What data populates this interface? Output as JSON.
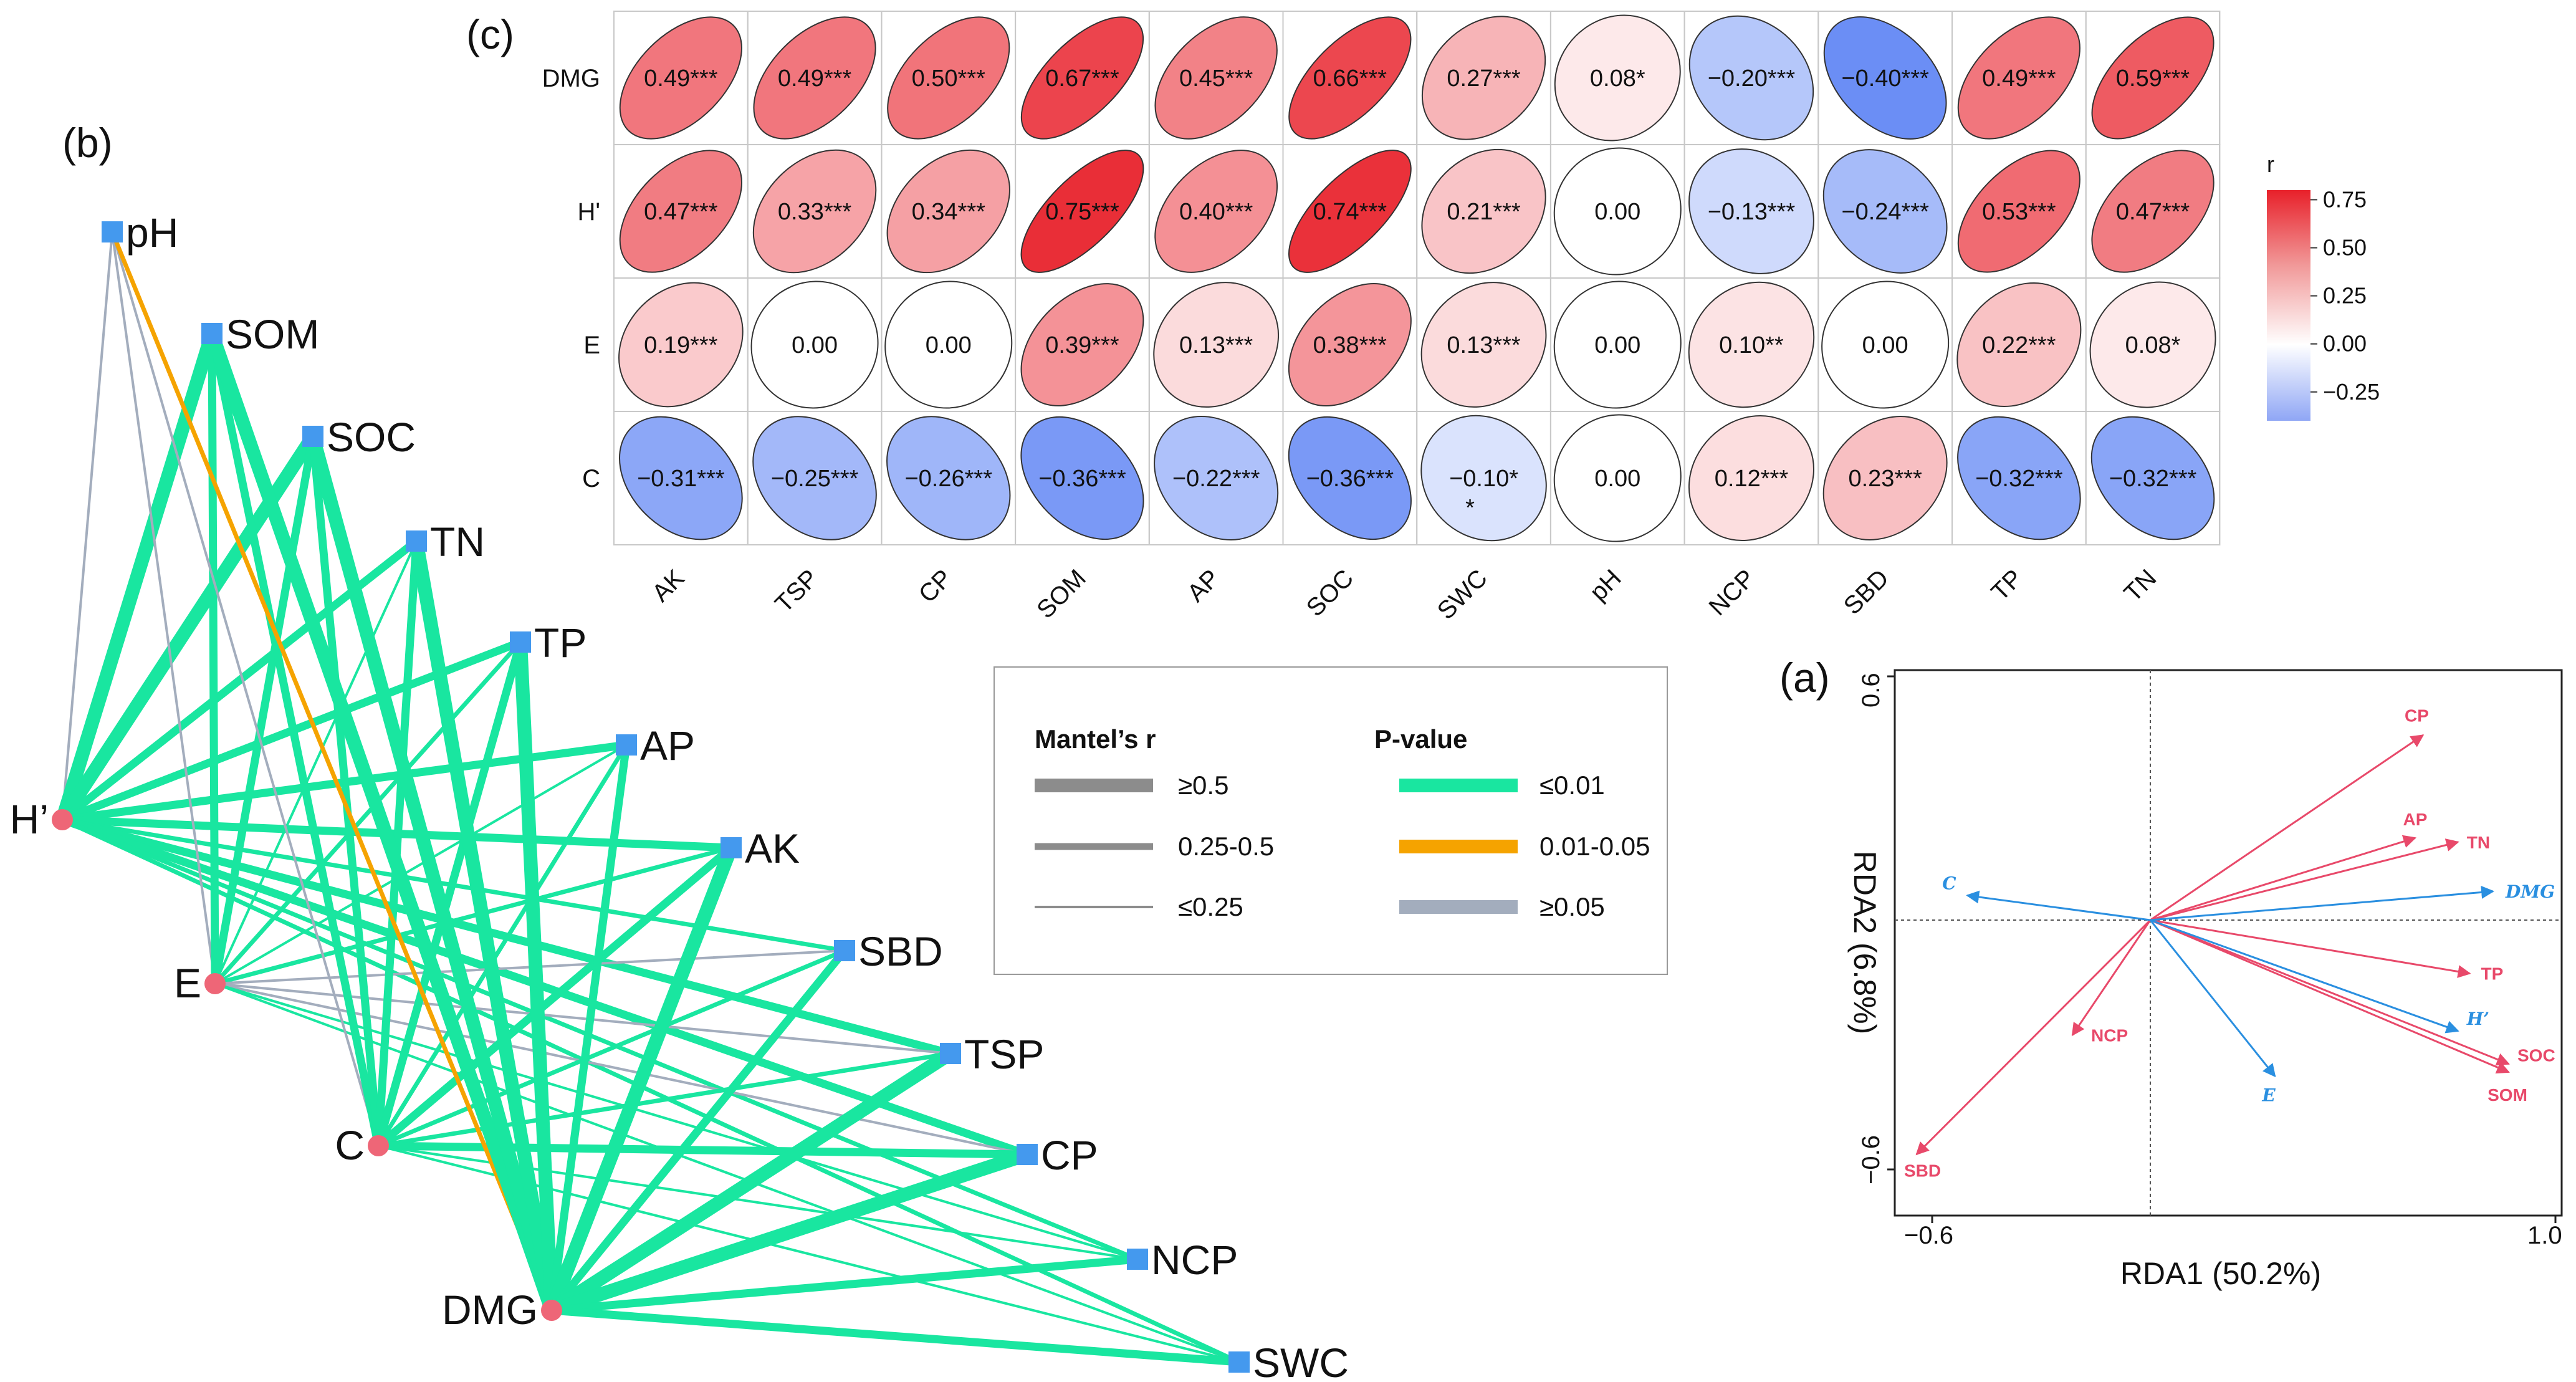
{
  "panels": {
    "a": "(a)",
    "b": "(b)",
    "c": "(c)"
  },
  "colors": {
    "significant": "#19e6a0",
    "marginal": "#f5a300",
    "ns": "#a3adbd",
    "response_node": "#ee6677",
    "env_node": "#4499ee",
    "env_arrow": "#e8496a",
    "resp_arrow": "#2a8fe0",
    "neg": "#6b8ef5",
    "pos": "#e8202a"
  },
  "chart_data": [
    {
      "type": "heatmap",
      "panel": "c",
      "rows": [
        "DMG",
        "H'",
        "E",
        "C"
      ],
      "columns": [
        "AK",
        "TSP",
        "CP",
        "SOM",
        "AP",
        "SOC",
        "SWC",
        "pH",
        "NCP",
        "SBD",
        "TP",
        "TN"
      ],
      "values": [
        [
          0.49,
          0.49,
          0.5,
          0.67,
          0.45,
          0.66,
          0.27,
          0.08,
          -0.2,
          -0.4,
          0.49,
          0.59
        ],
        [
          0.47,
          0.33,
          0.34,
          0.75,
          0.4,
          0.74,
          0.21,
          0.0,
          -0.13,
          -0.24,
          0.53,
          0.47
        ],
        [
          0.19,
          0.0,
          0.0,
          0.39,
          0.13,
          0.38,
          0.13,
          0.0,
          0.1,
          0.0,
          0.22,
          0.08
        ],
        [
          -0.31,
          -0.25,
          -0.26,
          -0.36,
          -0.22,
          -0.36,
          -0.1,
          0.0,
          0.12,
          0.23,
          -0.32,
          -0.32
        ]
      ],
      "labels": [
        [
          "0.49***",
          "0.49***",
          "0.50***",
          "0.67***",
          "0.45***",
          "0.66***",
          "0.27***",
          "0.08*",
          "−0.20***",
          "−0.40***",
          "0.49***",
          "0.59***"
        ],
        [
          "0.47***",
          "0.33***",
          "0.34***",
          "0.75***",
          "0.40***",
          "0.74***",
          "0.21***",
          "0.00",
          "−0.13***",
          "−0.24***",
          "0.53***",
          "0.47***"
        ],
        [
          "0.19***",
          "0.00",
          "0.00",
          "0.39***",
          "0.13***",
          "0.38***",
          "0.13***",
          "0.00",
          "0.10**",
          "0.00",
          "0.22***",
          "0.08*"
        ],
        [
          "−0.31***",
          "−0.25***",
          "−0.26***",
          "−0.36***",
          "−0.22***",
          "−0.36***",
          "−0.10*",
          "0.00",
          "0.12***",
          "0.23***",
          "−0.32***",
          "−0.32***"
        ]
      ],
      "extra_marks": {
        "SWC_C": "*"
      },
      "colorbar": {
        "title": "r",
        "ticks": [
          "0.75",
          "0.50",
          "0.25",
          "0.00",
          "−0.25"
        ],
        "range": [
          -0.4,
          0.8
        ]
      }
    },
    {
      "type": "network",
      "panel": "b",
      "response_nodes": [
        "H’",
        "E",
        "C",
        "DMG"
      ],
      "env_nodes": [
        "pH",
        "SOM",
        "SOC",
        "TN",
        "TP",
        "AP",
        "AK",
        "SBD",
        "TSP",
        "CP",
        "NCP",
        "SWC"
      ],
      "edges": [
        {
          "from": "H’",
          "to": "pH",
          "r": 0.1,
          "p": "ns"
        },
        {
          "from": "H’",
          "to": "SOM",
          "r": 0.6,
          "p": "sig"
        },
        {
          "from": "H’",
          "to": "SOC",
          "r": 0.6,
          "p": "sig"
        },
        {
          "from": "H’",
          "to": "TN",
          "r": 0.4,
          "p": "sig"
        },
        {
          "from": "H’",
          "to": "TP",
          "r": 0.4,
          "p": "sig"
        },
        {
          "from": "H’",
          "to": "AP",
          "r": 0.3,
          "p": "sig"
        },
        {
          "from": "H’",
          "to": "AK",
          "r": 0.4,
          "p": "sig"
        },
        {
          "from": "H’",
          "to": "SBD",
          "r": 0.2,
          "p": "sig"
        },
        {
          "from": "H’",
          "to": "TSP",
          "r": 0.3,
          "p": "sig"
        },
        {
          "from": "H’",
          "to": "CP",
          "r": 0.3,
          "p": "sig"
        },
        {
          "from": "H’",
          "to": "NCP",
          "r": 0.2,
          "p": "sig"
        },
        {
          "from": "H’",
          "to": "SWC",
          "r": 0.2,
          "p": "sig"
        },
        {
          "from": "E",
          "to": "pH",
          "r": 0.1,
          "p": "ns"
        },
        {
          "from": "E",
          "to": "SOM",
          "r": 0.3,
          "p": "sig"
        },
        {
          "from": "E",
          "to": "SOC",
          "r": 0.3,
          "p": "sig"
        },
        {
          "from": "E",
          "to": "TN",
          "r": 0.1,
          "p": "sig"
        },
        {
          "from": "E",
          "to": "TP",
          "r": 0.2,
          "p": "sig"
        },
        {
          "from": "E",
          "to": "AP",
          "r": 0.1,
          "p": "sig"
        },
        {
          "from": "E",
          "to": "AK",
          "r": 0.2,
          "p": "sig"
        },
        {
          "from": "E",
          "to": "SBD",
          "r": 0.1,
          "p": "ns"
        },
        {
          "from": "E",
          "to": "TSP",
          "r": 0.1,
          "p": "ns"
        },
        {
          "from": "E",
          "to": "CP",
          "r": 0.1,
          "p": "ns"
        },
        {
          "from": "E",
          "to": "NCP",
          "r": 0.1,
          "p": "sig"
        },
        {
          "from": "E",
          "to": "SWC",
          "r": 0.1,
          "p": "sig"
        },
        {
          "from": "C",
          "to": "pH",
          "r": 0.1,
          "p": "ns"
        },
        {
          "from": "C",
          "to": "SOM",
          "r": 0.3,
          "p": "sig"
        },
        {
          "from": "C",
          "to": "SOC",
          "r": 0.3,
          "p": "sig"
        },
        {
          "from": "C",
          "to": "TN",
          "r": 0.3,
          "p": "sig"
        },
        {
          "from": "C",
          "to": "TP",
          "r": 0.3,
          "p": "sig"
        },
        {
          "from": "C",
          "to": "AP",
          "r": 0.2,
          "p": "sig"
        },
        {
          "from": "C",
          "to": "AK",
          "r": 0.3,
          "p": "sig"
        },
        {
          "from": "C",
          "to": "SBD",
          "r": 0.2,
          "p": "sig"
        },
        {
          "from": "C",
          "to": "TSP",
          "r": 0.2,
          "p": "sig"
        },
        {
          "from": "C",
          "to": "CP",
          "r": 0.3,
          "p": "sig"
        },
        {
          "from": "C",
          "to": "NCP",
          "r": 0.1,
          "p": "sig"
        },
        {
          "from": "C",
          "to": "SWC",
          "r": 0.1,
          "p": "sig"
        },
        {
          "from": "DMG",
          "to": "pH",
          "r": 0.2,
          "p": "marginal"
        },
        {
          "from": "DMG",
          "to": "SOM",
          "r": 0.6,
          "p": "sig"
        },
        {
          "from": "DMG",
          "to": "SOC",
          "r": 0.6,
          "p": "sig"
        },
        {
          "from": "DMG",
          "to": "TN",
          "r": 0.5,
          "p": "sig"
        },
        {
          "from": "DMG",
          "to": "TP",
          "r": 0.5,
          "p": "sig"
        },
        {
          "from": "DMG",
          "to": "AP",
          "r": 0.4,
          "p": "sig"
        },
        {
          "from": "DMG",
          "to": "AK",
          "r": 0.5,
          "p": "sig"
        },
        {
          "from": "DMG",
          "to": "SBD",
          "r": 0.3,
          "p": "sig"
        },
        {
          "from": "DMG",
          "to": "TSP",
          "r": 0.5,
          "p": "sig"
        },
        {
          "from": "DMG",
          "to": "CP",
          "r": 0.6,
          "p": "sig"
        },
        {
          "from": "DMG",
          "to": "NCP",
          "r": 0.3,
          "p": "sig"
        },
        {
          "from": "DMG",
          "to": "SWC",
          "r": 0.4,
          "p": "sig"
        }
      ],
      "legend": {
        "mantel_title": "Mantel’s r",
        "mantel_items": [
          "≥0.5",
          "0.25-0.5",
          "≤0.25"
        ],
        "p_title": "P-value",
        "p_items": [
          "≤0.01",
          "0.01-0.05",
          "≥0.05"
        ]
      }
    },
    {
      "type": "scatter",
      "subtype": "rda-biplot",
      "panel": "a",
      "xlabel": "RDA1 (50.2%)",
      "ylabel": "RDA2 (6.8%)",
      "xlim": [
        -0.7,
        1.05
      ],
      "ylim": [
        -0.68,
        0.68
      ],
      "x_tick_labels": [
        "−0.6",
        "1.0"
      ],
      "y_tick_labels": [
        "0.6",
        "−0.6"
      ],
      "env_arrows": [
        {
          "name": "CP",
          "x": 0.7,
          "y": 0.45
        },
        {
          "name": "AP",
          "x": 0.68,
          "y": 0.2
        },
        {
          "name": "TN",
          "x": 0.79,
          "y": 0.19
        },
        {
          "name": "TP",
          "x": 0.82,
          "y": -0.13
        },
        {
          "name": "SOC",
          "x": 0.92,
          "y": -0.35
        },
        {
          "name": "SOM",
          "x": 0.92,
          "y": -0.37
        },
        {
          "name": "NCP",
          "x": -0.2,
          "y": -0.28
        },
        {
          "name": "SBD",
          "x": -0.6,
          "y": -0.57
        }
      ],
      "response_arrows": [
        {
          "name": "DMG",
          "x": 0.88,
          "y": 0.07
        },
        {
          "name": "H’",
          "x": 0.79,
          "y": -0.27
        },
        {
          "name": "E",
          "x": 0.32,
          "y": -0.38
        },
        {
          "name": "C",
          "x": -0.47,
          "y": 0.06
        }
      ]
    }
  ]
}
